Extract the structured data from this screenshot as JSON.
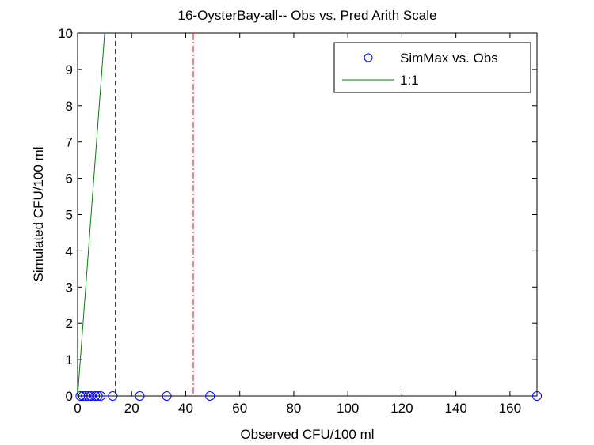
{
  "chart_data": {
    "type": "scatter",
    "title": "16-OysterBay-all-- Obs vs. Pred Arith Scale",
    "xlabel": "Observed CFU/100 ml",
    "ylabel": "Simulated CFU/100 ml",
    "xlim": [
      0,
      170
    ],
    "ylim": [
      0,
      10
    ],
    "xticks": [
      0,
      20,
      40,
      60,
      80,
      100,
      120,
      140,
      160
    ],
    "yticks": [
      0,
      1,
      2,
      3,
      4,
      5,
      6,
      7,
      8,
      9,
      10
    ],
    "grid": false,
    "legend_position": "top-right",
    "series": [
      {
        "name": "SimMax vs. Obs",
        "kind": "markers",
        "color": "#0000ff",
        "x": [
          1,
          2,
          3,
          4,
          5,
          6.5,
          7.5,
          8.5,
          13,
          23,
          33,
          49,
          170
        ],
        "y": [
          0,
          0,
          0,
          0,
          0,
          0,
          0,
          0,
          0,
          0,
          0,
          0,
          0
        ]
      },
      {
        "name": "1:1",
        "kind": "line",
        "color": "#008000",
        "x": [
          0,
          10
        ],
        "y": [
          0,
          10
        ]
      }
    ],
    "vlines": [
      {
        "x": 14,
        "color": "#000000",
        "style": "dashed"
      },
      {
        "x": 42.8,
        "color": "#ff0000",
        "style": "dashdot"
      }
    ]
  }
}
